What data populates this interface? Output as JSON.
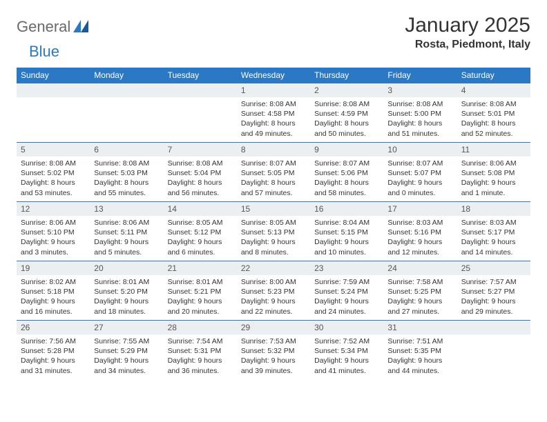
{
  "logo": {
    "general": "General",
    "blue": "Blue"
  },
  "title": "January 2025",
  "location": "Rosta, Piedmont, Italy",
  "colors": {
    "header_bg": "#2b78c4",
    "header_text": "#ffffff",
    "daynum_bg": "#eceff1",
    "border": "#2b78c4"
  },
  "weekdays": [
    "Sunday",
    "Monday",
    "Tuesday",
    "Wednesday",
    "Thursday",
    "Friday",
    "Saturday"
  ],
  "weeks": [
    [
      {
        "empty": true
      },
      {
        "empty": true
      },
      {
        "empty": true
      },
      {
        "day": "1",
        "sunrise": "8:08 AM",
        "sunset": "4:58 PM",
        "dl1": "Daylight: 8 hours",
        "dl2": "and 49 minutes."
      },
      {
        "day": "2",
        "sunrise": "8:08 AM",
        "sunset": "4:59 PM",
        "dl1": "Daylight: 8 hours",
        "dl2": "and 50 minutes."
      },
      {
        "day": "3",
        "sunrise": "8:08 AM",
        "sunset": "5:00 PM",
        "dl1": "Daylight: 8 hours",
        "dl2": "and 51 minutes."
      },
      {
        "day": "4",
        "sunrise": "8:08 AM",
        "sunset": "5:01 PM",
        "dl1": "Daylight: 8 hours",
        "dl2": "and 52 minutes."
      }
    ],
    [
      {
        "day": "5",
        "sunrise": "8:08 AM",
        "sunset": "5:02 PM",
        "dl1": "Daylight: 8 hours",
        "dl2": "and 53 minutes."
      },
      {
        "day": "6",
        "sunrise": "8:08 AM",
        "sunset": "5:03 PM",
        "dl1": "Daylight: 8 hours",
        "dl2": "and 55 minutes."
      },
      {
        "day": "7",
        "sunrise": "8:08 AM",
        "sunset": "5:04 PM",
        "dl1": "Daylight: 8 hours",
        "dl2": "and 56 minutes."
      },
      {
        "day": "8",
        "sunrise": "8:07 AM",
        "sunset": "5:05 PM",
        "dl1": "Daylight: 8 hours",
        "dl2": "and 57 minutes."
      },
      {
        "day": "9",
        "sunrise": "8:07 AM",
        "sunset": "5:06 PM",
        "dl1": "Daylight: 8 hours",
        "dl2": "and 58 minutes."
      },
      {
        "day": "10",
        "sunrise": "8:07 AM",
        "sunset": "5:07 PM",
        "dl1": "Daylight: 9 hours",
        "dl2": "and 0 minutes."
      },
      {
        "day": "11",
        "sunrise": "8:06 AM",
        "sunset": "5:08 PM",
        "dl1": "Daylight: 9 hours",
        "dl2": "and 1 minute."
      }
    ],
    [
      {
        "day": "12",
        "sunrise": "8:06 AM",
        "sunset": "5:10 PM",
        "dl1": "Daylight: 9 hours",
        "dl2": "and 3 minutes."
      },
      {
        "day": "13",
        "sunrise": "8:06 AM",
        "sunset": "5:11 PM",
        "dl1": "Daylight: 9 hours",
        "dl2": "and 5 minutes."
      },
      {
        "day": "14",
        "sunrise": "8:05 AM",
        "sunset": "5:12 PM",
        "dl1": "Daylight: 9 hours",
        "dl2": "and 6 minutes."
      },
      {
        "day": "15",
        "sunrise": "8:05 AM",
        "sunset": "5:13 PM",
        "dl1": "Daylight: 9 hours",
        "dl2": "and 8 minutes."
      },
      {
        "day": "16",
        "sunrise": "8:04 AM",
        "sunset": "5:15 PM",
        "dl1": "Daylight: 9 hours",
        "dl2": "and 10 minutes."
      },
      {
        "day": "17",
        "sunrise": "8:03 AM",
        "sunset": "5:16 PM",
        "dl1": "Daylight: 9 hours",
        "dl2": "and 12 minutes."
      },
      {
        "day": "18",
        "sunrise": "8:03 AM",
        "sunset": "5:17 PM",
        "dl1": "Daylight: 9 hours",
        "dl2": "and 14 minutes."
      }
    ],
    [
      {
        "day": "19",
        "sunrise": "8:02 AM",
        "sunset": "5:18 PM",
        "dl1": "Daylight: 9 hours",
        "dl2": "and 16 minutes."
      },
      {
        "day": "20",
        "sunrise": "8:01 AM",
        "sunset": "5:20 PM",
        "dl1": "Daylight: 9 hours",
        "dl2": "and 18 minutes."
      },
      {
        "day": "21",
        "sunrise": "8:01 AM",
        "sunset": "5:21 PM",
        "dl1": "Daylight: 9 hours",
        "dl2": "and 20 minutes."
      },
      {
        "day": "22",
        "sunrise": "8:00 AM",
        "sunset": "5:23 PM",
        "dl1": "Daylight: 9 hours",
        "dl2": "and 22 minutes."
      },
      {
        "day": "23",
        "sunrise": "7:59 AM",
        "sunset": "5:24 PM",
        "dl1": "Daylight: 9 hours",
        "dl2": "and 24 minutes."
      },
      {
        "day": "24",
        "sunrise": "7:58 AM",
        "sunset": "5:25 PM",
        "dl1": "Daylight: 9 hours",
        "dl2": "and 27 minutes."
      },
      {
        "day": "25",
        "sunrise": "7:57 AM",
        "sunset": "5:27 PM",
        "dl1": "Daylight: 9 hours",
        "dl2": "and 29 minutes."
      }
    ],
    [
      {
        "day": "26",
        "sunrise": "7:56 AM",
        "sunset": "5:28 PM",
        "dl1": "Daylight: 9 hours",
        "dl2": "and 31 minutes."
      },
      {
        "day": "27",
        "sunrise": "7:55 AM",
        "sunset": "5:29 PM",
        "dl1": "Daylight: 9 hours",
        "dl2": "and 34 minutes."
      },
      {
        "day": "28",
        "sunrise": "7:54 AM",
        "sunset": "5:31 PM",
        "dl1": "Daylight: 9 hours",
        "dl2": "and 36 minutes."
      },
      {
        "day": "29",
        "sunrise": "7:53 AM",
        "sunset": "5:32 PM",
        "dl1": "Daylight: 9 hours",
        "dl2": "and 39 minutes."
      },
      {
        "day": "30",
        "sunrise": "7:52 AM",
        "sunset": "5:34 PM",
        "dl1": "Daylight: 9 hours",
        "dl2": "and 41 minutes."
      },
      {
        "day": "31",
        "sunrise": "7:51 AM",
        "sunset": "5:35 PM",
        "dl1": "Daylight: 9 hours",
        "dl2": "and 44 minutes."
      },
      {
        "empty": true
      }
    ]
  ]
}
